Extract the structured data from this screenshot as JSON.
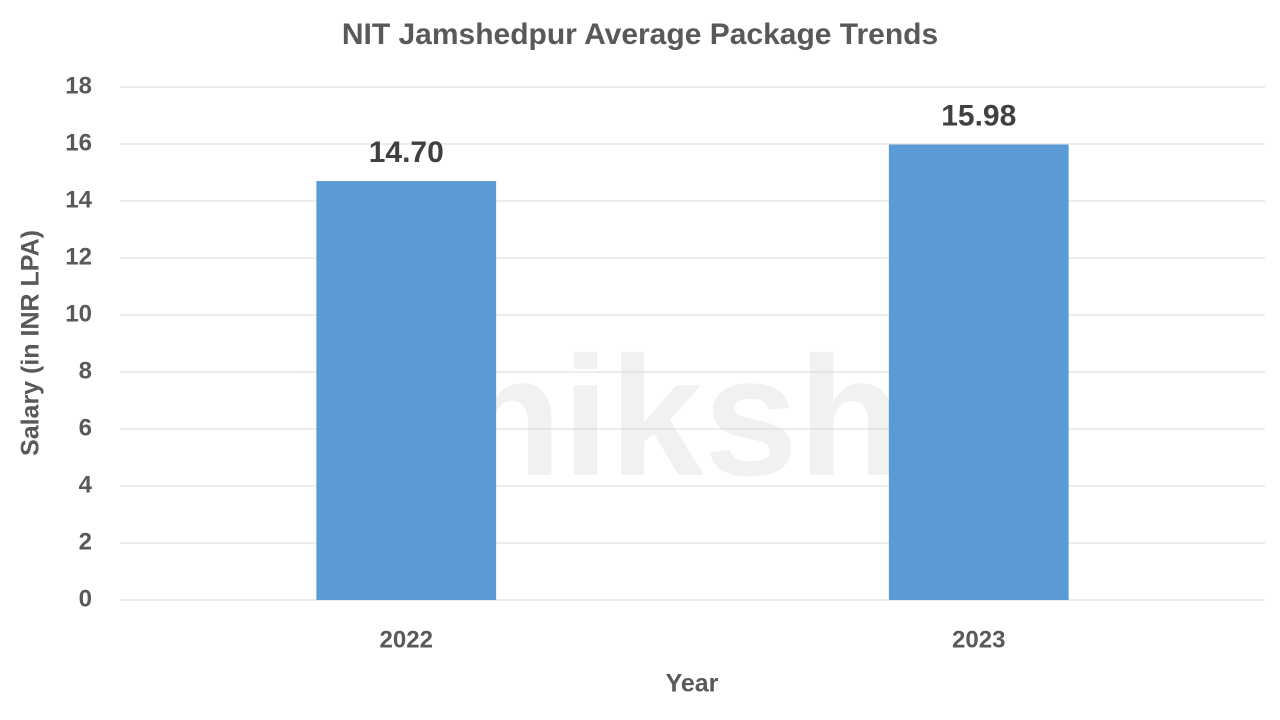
{
  "chart_data": {
    "type": "bar",
    "title": "NIT Jamshedpur Average Package Trends",
    "watermark": "shiksha",
    "x_label": "Year",
    "y_label": "Salary (in INR LPA)",
    "categories": [
      "2022",
      "2023"
    ],
    "values": [
      14.7,
      15.98
    ],
    "value_labels": [
      "14.70",
      "15.98"
    ],
    "color": "#5b9bd5",
    "ylim": [
      0,
      18
    ],
    "yticks": [
      0,
      2,
      4,
      6,
      8,
      10,
      12,
      14,
      16,
      18
    ],
    "grid": true
  }
}
